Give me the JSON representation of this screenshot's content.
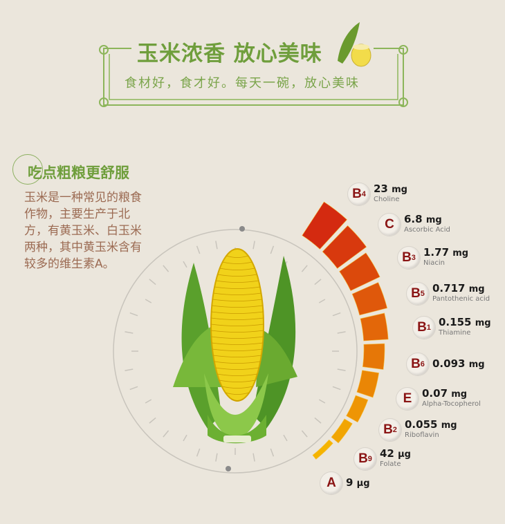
{
  "header": {
    "title": "玉米浓香  放心美味",
    "subtitle": "食材好，食才好。每天一碗，放心美味"
  },
  "section": {
    "title": "吃点粗粮更舒服",
    "body": "玉米是一种常见的粮食作物，主要生产于北方，有黄玉米、白玉米两种，其中黄玉米含有较多的维生素A。"
  },
  "colors": {
    "accent_green": "#6f9e3c",
    "body_brown": "#9b6a52",
    "badge_red": "#8a1414",
    "bar_start": "#d42a10",
    "bar_end": "#f5b400"
  },
  "nutrients": [
    {
      "letter": "B",
      "sub": "4",
      "value": "23",
      "unit": "mg",
      "name": "Choline"
    },
    {
      "letter": "C",
      "sub": "",
      "value": "6.8",
      "unit": "mg",
      "name": "Ascorbic Acid"
    },
    {
      "letter": "B",
      "sub": "3",
      "value": "1.77",
      "unit": "mg",
      "name": "Niacin"
    },
    {
      "letter": "B",
      "sub": "5",
      "value": "0.717",
      "unit": "mg",
      "name": "Pantothenic acid"
    },
    {
      "letter": "B",
      "sub": "1",
      "value": "0.155",
      "unit": "mg",
      "name": "Thiamine"
    },
    {
      "letter": "B",
      "sub": "6",
      "value": "0.093",
      "unit": "mg",
      "name": ""
    },
    {
      "letter": "E",
      "sub": "",
      "value": "0.07",
      "unit": "mg",
      "name": "Alpha-Tocopherol"
    },
    {
      "letter": "B",
      "sub": "2",
      "value": "0.055",
      "unit": "mg",
      "name": "Riboflavin"
    },
    {
      "letter": "B",
      "sub": "9",
      "value": "42",
      "unit": "μg",
      "name": "Folate"
    },
    {
      "letter": "A",
      "sub": "",
      "value": "9",
      "unit": "μg",
      "name": ""
    }
  ]
}
